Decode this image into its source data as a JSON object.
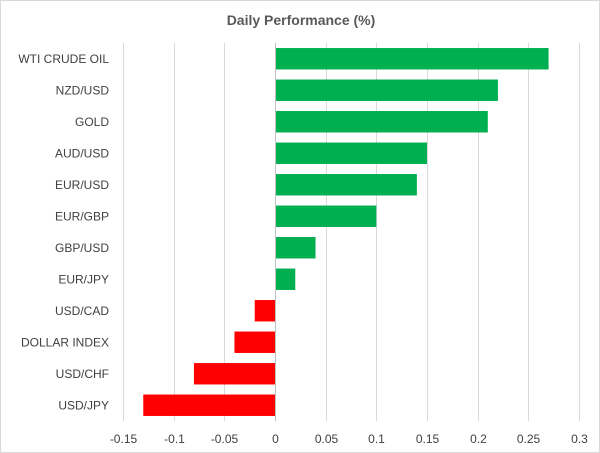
{
  "chart_data": {
    "type": "bar",
    "orientation": "horizontal",
    "title": "Daily Performance (%)",
    "xlabel": "",
    "ylabel": "",
    "xlim": [
      -0.15,
      0.3
    ],
    "grid": true,
    "legend": "none",
    "categories": [
      "WTI CRUDE OIL",
      "NZD/USD",
      "GOLD",
      "AUD/USD",
      "EUR/USD",
      "EUR/GBP",
      "GBP/USD",
      "EUR/JPY",
      "USD/CAD",
      "DOLLAR INDEX",
      "USD/CHF",
      "USD/JPY"
    ],
    "values": [
      0.27,
      0.22,
      0.21,
      0.15,
      0.14,
      0.1,
      0.04,
      0.02,
      -0.02,
      -0.04,
      -0.08,
      -0.13
    ],
    "x_ticks": [
      -0.15,
      -0.1,
      -0.05,
      0,
      0.05,
      0.1,
      0.15,
      0.2,
      0.25,
      0.3
    ],
    "x_tick_labels": [
      "-0.15",
      "-0.1",
      "-0.05",
      "0",
      "0.05",
      "0.1",
      "0.15",
      "0.2",
      "0.25",
      "0.3"
    ],
    "colors": {
      "positive": "#00b050",
      "negative": "#ff0000"
    }
  }
}
